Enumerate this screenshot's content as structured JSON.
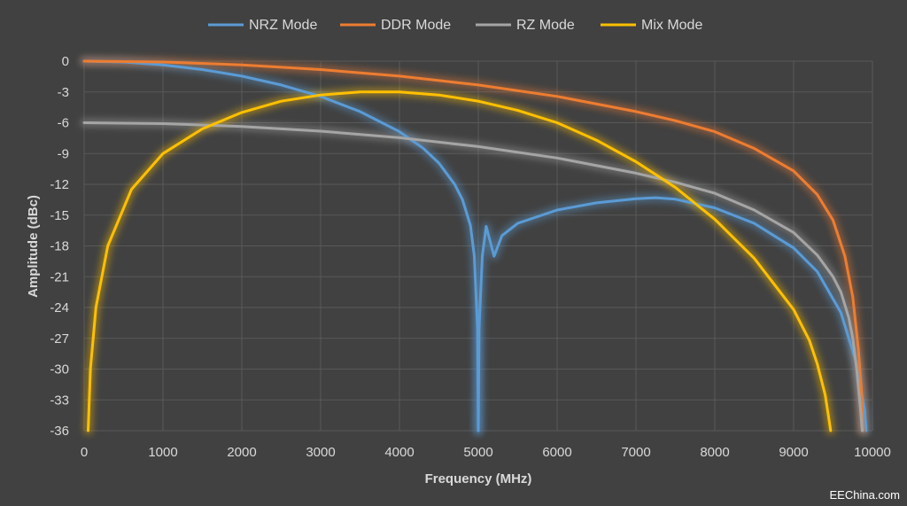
{
  "chart_data": {
    "type": "line",
    "xlabel": "Frequency (MHz)",
    "ylabel": "Amplitude (dBc)",
    "xlim": [
      0,
      10000
    ],
    "ylim": [
      -36,
      0
    ],
    "x_ticks": [
      0,
      1000,
      2000,
      3000,
      4000,
      5000,
      6000,
      7000,
      8000,
      9000,
      10000
    ],
    "y_ticks": [
      0,
      -3,
      -6,
      -9,
      -12,
      -15,
      -18,
      -21,
      -24,
      -27,
      -30,
      -33,
      -36
    ],
    "x_tick_labels": [
      "0",
      "1000",
      "2000",
      "3000",
      "4000",
      "5000",
      "6000",
      "7000",
      "8000",
      "9000",
      "10000"
    ],
    "y_tick_labels": [
      "0",
      "-3",
      "-6",
      "-9",
      "-12",
      "-15",
      "-18",
      "-21",
      "-24",
      "-27",
      "-30",
      "-33",
      "-36"
    ],
    "grid": true,
    "legend_position": "top",
    "series": [
      {
        "name": "NRZ Mode",
        "color": "#5b9bd5",
        "segments": [
          [
            [
              0,
              0
            ],
            [
              500,
              -0.09
            ],
            [
              1000,
              -0.36
            ],
            [
              1500,
              -0.82
            ],
            [
              2000,
              -1.46
            ],
            [
              2500,
              -2.32
            ],
            [
              3000,
              -3.44
            ],
            [
              3500,
              -4.91
            ],
            [
              4000,
              -6.87
            ],
            [
              4300,
              -8.48
            ],
            [
              4500,
              -9.93
            ],
            [
              4700,
              -12.0
            ],
            [
              4800,
              -13.5
            ],
            [
              4900,
              -16.0
            ],
            [
              4950,
              -19.0
            ],
            [
              4990,
              -26.0
            ],
            [
              5000,
              -36.0
            ]
          ],
          [
            [
              5000,
              -36.0
            ],
            [
              5010,
              -26.0
            ],
            [
              5050,
              -19.0
            ],
            [
              5100,
              -16.1
            ],
            [
              5200,
              -19.0
            ],
            [
              5300,
              -17.0
            ],
            [
              5500,
              -15.8
            ],
            [
              6000,
              -14.5
            ],
            [
              6500,
              -13.8
            ],
            [
              7000,
              -13.4
            ],
            [
              7250,
              -13.3
            ],
            [
              7500,
              -13.45
            ],
            [
              8000,
              -14.3
            ],
            [
              8500,
              -15.8
            ],
            [
              9000,
              -18.2
            ],
            [
              9300,
              -20.5
            ],
            [
              9600,
              -24.5
            ],
            [
              9800,
              -29.5
            ],
            [
              9900,
              -34.0
            ],
            [
              9920,
              -36.0
            ]
          ]
        ]
      },
      {
        "name": "DDR Mode",
        "color": "#ed7d31",
        "segments": [
          [
            [
              0,
              0
            ],
            [
              1000,
              -0.09
            ],
            [
              2000,
              -0.36
            ],
            [
              3000,
              -0.82
            ],
            [
              4000,
              -1.46
            ],
            [
              5000,
              -2.32
            ],
            [
              6000,
              -3.44
            ],
            [
              7000,
              -4.91
            ],
            [
              7500,
              -5.8
            ],
            [
              8000,
              -6.87
            ],
            [
              8500,
              -8.5
            ],
            [
              9000,
              -10.7
            ],
            [
              9300,
              -13.0
            ],
            [
              9500,
              -15.5
            ],
            [
              9650,
              -19.0
            ],
            [
              9750,
              -23.0
            ],
            [
              9820,
              -28.0
            ],
            [
              9860,
              -32.0
            ],
            [
              9880,
              -36.0
            ]
          ]
        ]
      },
      {
        "name": "RZ Mode",
        "color": "#a5a5a5",
        "segments": [
          [
            [
              0,
              -6.0
            ],
            [
              1000,
              -6.09
            ],
            [
              2000,
              -6.36
            ],
            [
              3000,
              -6.82
            ],
            [
              4000,
              -7.46
            ],
            [
              5000,
              -8.32
            ],
            [
              6000,
              -9.44
            ],
            [
              7000,
              -10.91
            ],
            [
              7500,
              -11.8
            ],
            [
              8000,
              -12.87
            ],
            [
              8500,
              -14.5
            ],
            [
              9000,
              -16.7
            ],
            [
              9300,
              -18.9
            ],
            [
              9500,
              -21.0
            ],
            [
              9600,
              -22.5
            ],
            [
              9700,
              -25.0
            ],
            [
              9750,
              -27.0
            ],
            [
              9800,
              -30.0
            ],
            [
              9850,
              -34.0
            ],
            [
              9870,
              -36.0
            ]
          ]
        ]
      },
      {
        "name": "Mix Mode",
        "color": "#ffc000",
        "segments": [
          [
            [
              50,
              -36.0
            ],
            [
              80,
              -30.0
            ],
            [
              150,
              -24.0
            ],
            [
              300,
              -18.0
            ],
            [
              600,
              -12.5
            ],
            [
              1000,
              -9.0
            ],
            [
              1500,
              -6.6
            ],
            [
              2000,
              -5.0
            ],
            [
              2500,
              -3.9
            ],
            [
              3000,
              -3.3
            ],
            [
              3500,
              -3.0
            ],
            [
              4000,
              -3.0
            ],
            [
              4500,
              -3.3
            ],
            [
              5000,
              -3.9
            ],
            [
              5500,
              -4.8
            ],
            [
              6000,
              -6.0
            ],
            [
              6500,
              -7.7
            ],
            [
              7000,
              -9.8
            ],
            [
              7500,
              -12.3
            ],
            [
              8000,
              -15.4
            ],
            [
              8500,
              -19.2
            ],
            [
              9000,
              -24.2
            ],
            [
              9200,
              -27.2
            ],
            [
              9300,
              -29.5
            ],
            [
              9400,
              -32.5
            ],
            [
              9440,
              -34.5
            ],
            [
              9470,
              -36.0
            ]
          ]
        ]
      }
    ]
  },
  "watermark": "EEChina.com"
}
